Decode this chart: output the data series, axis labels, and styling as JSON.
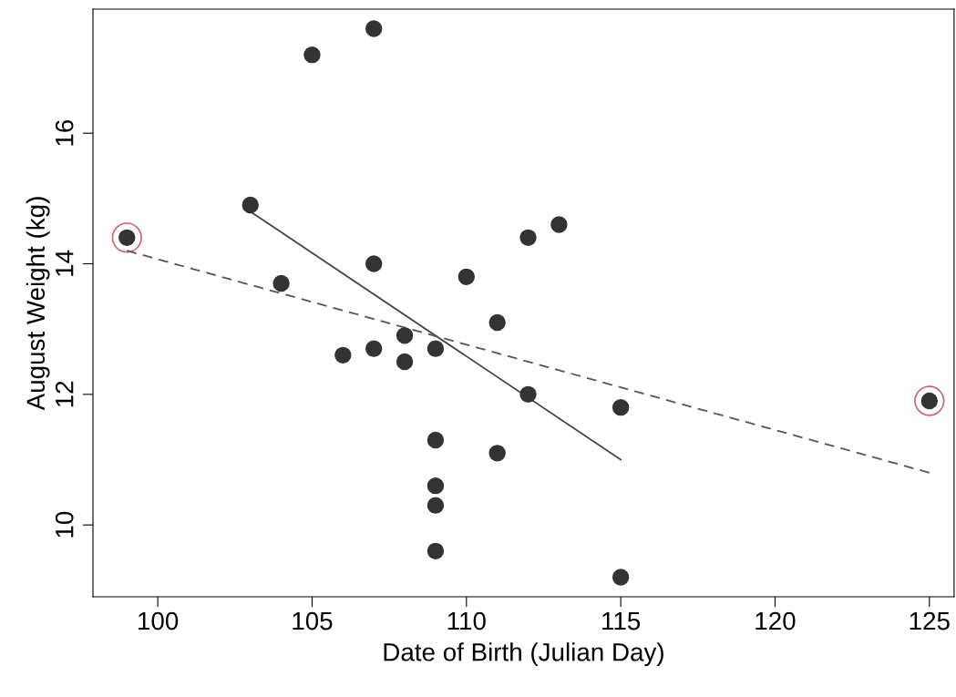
{
  "chart_data": {
    "type": "scatter",
    "xlabel": "Date of Birth (Julian Day)",
    "ylabel": "August Weight (kg)",
    "xlim": [
      97.9,
      125.8
    ],
    "ylim": [
      8.9,
      17.9
    ],
    "xticks": [
      100,
      105,
      110,
      115,
      120,
      125
    ],
    "yticks": [
      10,
      12,
      14,
      16
    ],
    "grid": false,
    "legend": false,
    "series": [
      {
        "color": "#333333",
        "marker": "circle",
        "x": [
          99,
          103,
          104,
          105,
          106,
          107,
          107,
          107,
          108,
          108,
          109,
          109,
          109,
          109,
          109,
          110,
          111,
          111,
          112,
          112,
          113,
          115,
          115,
          125
        ],
        "values": [
          14.4,
          14.9,
          13.7,
          17.2,
          12.6,
          17.6,
          14.0,
          12.7,
          12.9,
          12.5,
          12.7,
          11.3,
          10.6,
          10.3,
          9.6,
          13.8,
          13.1,
          11.1,
          14.4,
          12.0,
          14.6,
          11.8,
          9.2,
          11.9
        ]
      },
      {
        "type": "bubble",
        "color": "#d06070",
        "x": [
          99,
          125
        ],
        "values": [
          14.4,
          11.9
        ],
        "sizes": [
          1,
          1
        ]
      },
      {
        "type": "line",
        "color": "#444444",
        "line_style": "solid",
        "x": [
          103,
          115
        ],
        "values": [
          14.8,
          11.0
        ]
      },
      {
        "type": "line",
        "color": "#555555",
        "line_style": "dashed",
        "x": [
          99,
          125
        ],
        "values": [
          14.2,
          10.8
        ]
      }
    ]
  }
}
